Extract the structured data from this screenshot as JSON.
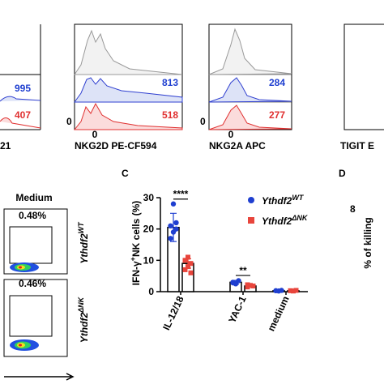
{
  "histograms": [
    {
      "label": "21",
      "blue": "995",
      "red": "407"
    },
    {
      "label": "NKG2D PE-CF594",
      "blue": "813",
      "red": "518",
      "zero": "0",
      "tick": "0"
    },
    {
      "label": "NKG2A APC",
      "blue": "284",
      "red": "277",
      "zero": "0",
      "tick": "0"
    },
    {
      "label": "TIGIT E"
    }
  ],
  "flow": {
    "title": "Medium",
    "plots": [
      {
        "percent": "0.48%",
        "row_label": "Ythdf2",
        "row_sup": "WT"
      },
      {
        "percent": "0.46%",
        "row_label": "Ythdf2",
        "row_sup": "ΔNK"
      }
    ]
  },
  "panel_letters": [
    "C",
    "D"
  ],
  "panel_d": {
    "y_label": "% of killing",
    "tick": "8"
  },
  "chart_data": {
    "type": "bar",
    "y_label": {
      "text": "IFN-γ",
      "sup": "+",
      "rest": "NK cells (%)"
    },
    "categories": [
      "IL-12/18",
      "YAC-1",
      "medium"
    ],
    "ylim": [
      0,
      30
    ],
    "yticks": [
      0,
      10,
      20,
      30
    ],
    "series": [
      {
        "name": "Ythdf2",
        "name_sup": "WT",
        "color": "#1f3fd0",
        "marker": "circle",
        "values": [
          20.5,
          3,
          0.3
        ],
        "errors": [
          4.5,
          0.6,
          0.1
        ],
        "points": [
          [
            21,
            19,
            22,
            17,
            28,
            20
          ],
          [
            3,
            2.5,
            3.5,
            2.8
          ],
          [
            0.3,
            0.2,
            0.4
          ]
        ]
      },
      {
        "name": "Ythdf2",
        "name_sup": "ΔNK",
        "color": "#e8453c",
        "marker": "square",
        "values": [
          9,
          1.8,
          0.3
        ],
        "errors": [
          1.5,
          0.3,
          0.1
        ],
        "points": [
          [
            10,
            8,
            9,
            7,
            11,
            6
          ],
          [
            1.5,
            2,
            1.8,
            2.2
          ],
          [
            0.3,
            0.2,
            0.4
          ]
        ]
      }
    ],
    "annotations": [
      {
        "text": "****",
        "category": 0
      },
      {
        "text": "**",
        "category": 1
      }
    ]
  }
}
